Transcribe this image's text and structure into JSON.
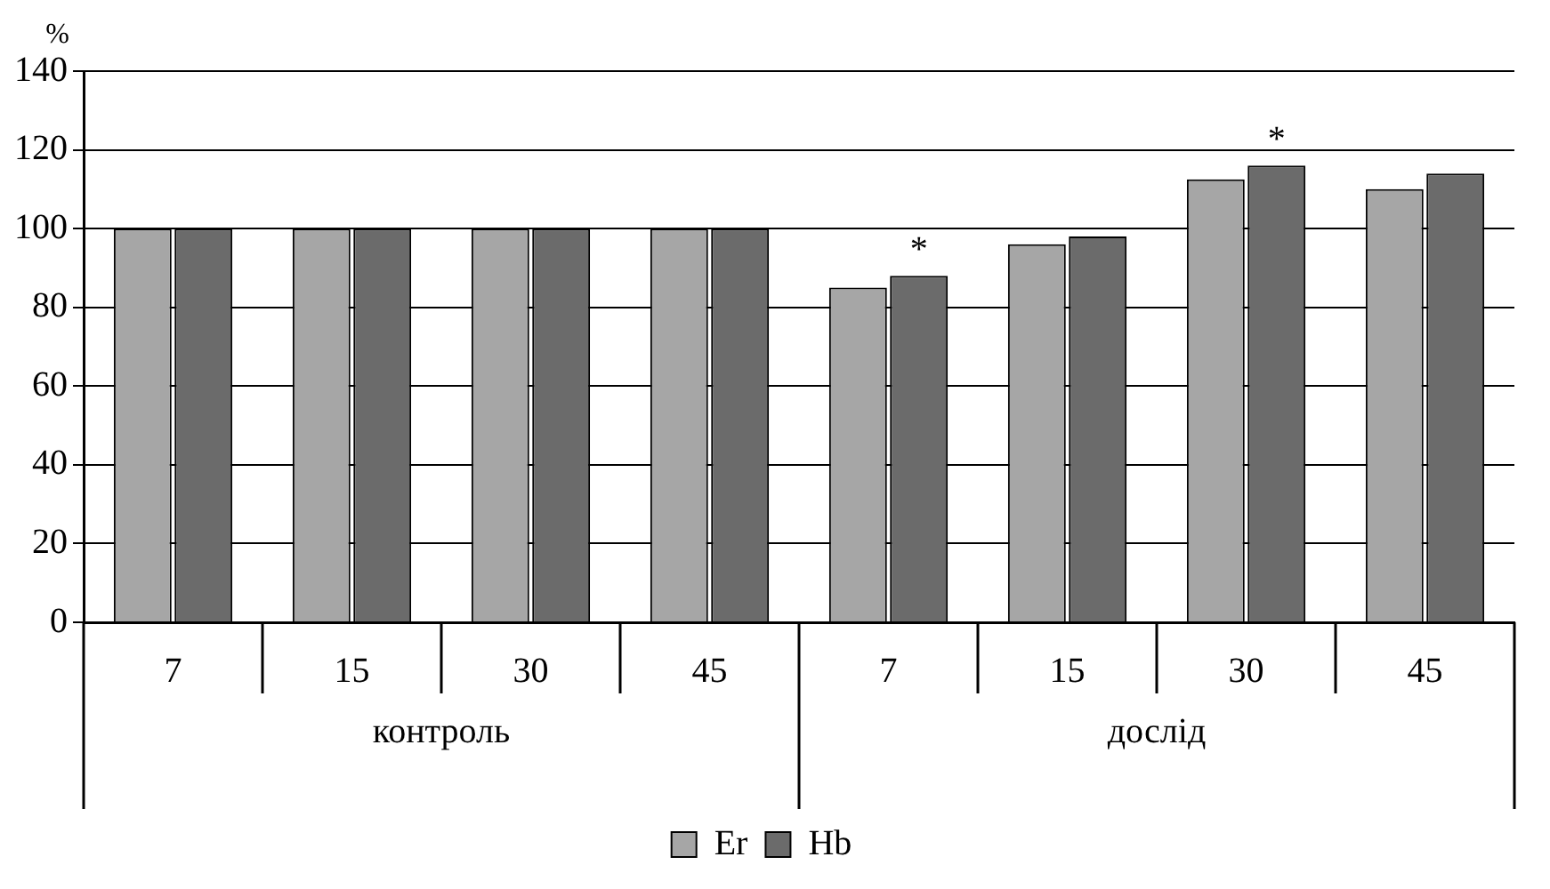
{
  "chart_data": {
    "type": "bar",
    "ylabel": "%",
    "categories": [
      "7",
      "15",
      "30",
      "45",
      "7",
      "15",
      "30",
      "45"
    ],
    "series": [
      {
        "name": "Er",
        "color": "#a6a6a6",
        "values": [
          100,
          100,
          100,
          100,
          85,
          96,
          112.5,
          110
        ]
      },
      {
        "name": "Hb",
        "color": "#6b6b6b",
        "values": [
          100,
          100,
          100,
          100,
          88,
          98,
          116,
          114
        ],
        "value_labels": [
          null,
          null,
          null,
          null,
          "*",
          null,
          "*",
          null
        ]
      }
    ],
    "ylim": [
      0,
      140
    ],
    "yticks": [
      0,
      20,
      40,
      60,
      80,
      100,
      120,
      140
    ],
    "grid": "y",
    "legend": "bottom",
    "annotations": [
      "контроль",
      "дослід"
    ]
  }
}
